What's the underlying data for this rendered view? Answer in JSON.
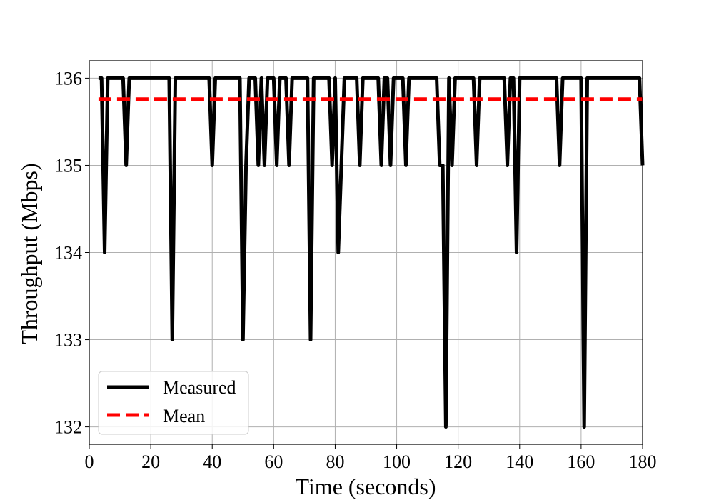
{
  "chart_data": {
    "type": "line",
    "title": "",
    "xlabel": "Time (seconds)",
    "ylabel": "Throughput (Mbps)",
    "xlim": [
      0,
      180
    ],
    "ylim": [
      131.8,
      136.2
    ],
    "xticks": [
      0,
      20,
      40,
      60,
      80,
      100,
      120,
      140,
      160,
      180
    ],
    "yticks": [
      132,
      133,
      134,
      135,
      136
    ],
    "xtick_labels": [
      "0",
      "20",
      "40",
      "60",
      "80",
      "100",
      "120",
      "140",
      "160",
      "180"
    ],
    "ytick_labels": [
      "132",
      "133",
      "134",
      "135",
      "136"
    ],
    "grid": true,
    "legend_position": "lower-left",
    "series": [
      {
        "name": "Measured",
        "color": "#000000",
        "style": "solid",
        "points": [
          [
            3,
            136
          ],
          [
            4,
            136
          ],
          [
            5,
            134
          ],
          [
            6,
            136
          ],
          [
            7,
            136
          ],
          [
            8,
            136
          ],
          [
            9,
            136
          ],
          [
            10,
            136
          ],
          [
            11,
            136
          ],
          [
            12,
            135
          ],
          [
            13,
            136
          ],
          [
            14,
            136
          ],
          [
            15,
            136
          ],
          [
            16,
            136
          ],
          [
            17,
            136
          ],
          [
            18,
            136
          ],
          [
            19,
            136
          ],
          [
            20,
            136
          ],
          [
            21,
            136
          ],
          [
            22,
            136
          ],
          [
            23,
            136
          ],
          [
            24,
            136
          ],
          [
            25,
            136
          ],
          [
            26,
            136
          ],
          [
            27,
            133
          ],
          [
            28,
            136
          ],
          [
            29,
            136
          ],
          [
            30,
            136
          ],
          [
            31,
            136
          ],
          [
            32,
            136
          ],
          [
            33,
            136
          ],
          [
            34,
            136
          ],
          [
            35,
            136
          ],
          [
            36,
            136
          ],
          [
            37,
            136
          ],
          [
            38,
            136
          ],
          [
            39,
            136
          ],
          [
            40,
            135
          ],
          [
            41,
            136
          ],
          [
            42,
            136
          ],
          [
            43,
            136
          ],
          [
            44,
            136
          ],
          [
            45,
            136
          ],
          [
            46,
            136
          ],
          [
            47,
            136
          ],
          [
            48,
            136
          ],
          [
            49,
            136
          ],
          [
            50,
            133
          ],
          [
            51,
            135
          ],
          [
            52,
            136
          ],
          [
            53,
            136
          ],
          [
            54,
            136
          ],
          [
            55,
            135
          ],
          [
            56,
            136
          ],
          [
            57,
            135
          ],
          [
            58,
            136
          ],
          [
            59,
            136
          ],
          [
            60,
            136
          ],
          [
            61,
            135
          ],
          [
            62,
            136
          ],
          [
            63,
            136
          ],
          [
            64,
            136
          ],
          [
            65,
            135
          ],
          [
            66,
            136
          ],
          [
            67,
            136
          ],
          [
            68,
            136
          ],
          [
            69,
            136
          ],
          [
            70,
            136
          ],
          [
            71,
            136
          ],
          [
            72,
            133
          ],
          [
            73,
            136
          ],
          [
            74,
            136
          ],
          [
            75,
            136
          ],
          [
            76,
            136
          ],
          [
            77,
            136
          ],
          [
            78,
            136
          ],
          [
            79,
            135
          ],
          [
            80,
            136
          ],
          [
            81,
            134
          ],
          [
            82,
            135
          ],
          [
            83,
            136
          ],
          [
            84,
            136
          ],
          [
            85,
            136
          ],
          [
            86,
            136
          ],
          [
            87,
            136
          ],
          [
            88,
            135
          ],
          [
            89,
            136
          ],
          [
            90,
            136
          ],
          [
            91,
            136
          ],
          [
            92,
            136
          ],
          [
            93,
            136
          ],
          [
            94,
            136
          ],
          [
            95,
            135
          ],
          [
            96,
            136
          ],
          [
            97,
            136
          ],
          [
            98,
            135
          ],
          [
            99,
            136
          ],
          [
            100,
            136
          ],
          [
            101,
            136
          ],
          [
            102,
            136
          ],
          [
            103,
            135
          ],
          [
            104,
            136
          ],
          [
            105,
            136
          ],
          [
            106,
            136
          ],
          [
            107,
            136
          ],
          [
            108,
            136
          ],
          [
            109,
            136
          ],
          [
            110,
            136
          ],
          [
            111,
            136
          ],
          [
            112,
            136
          ],
          [
            113,
            136
          ],
          [
            114,
            135
          ],
          [
            115,
            135
          ],
          [
            116,
            132
          ],
          [
            117,
            136
          ],
          [
            118,
            135
          ],
          [
            119,
            136
          ],
          [
            120,
            136
          ],
          [
            121,
            136
          ],
          [
            122,
            136
          ],
          [
            123,
            136
          ],
          [
            124,
            136
          ],
          [
            125,
            136
          ],
          [
            126,
            135
          ],
          [
            127,
            136
          ],
          [
            128,
            136
          ],
          [
            129,
            136
          ],
          [
            130,
            136
          ],
          [
            131,
            136
          ],
          [
            132,
            136
          ],
          [
            133,
            136
          ],
          [
            134,
            136
          ],
          [
            135,
            136
          ],
          [
            136,
            135
          ],
          [
            137,
            136
          ],
          [
            138,
            136
          ],
          [
            139,
            134
          ],
          [
            140,
            136
          ],
          [
            141,
            136
          ],
          [
            142,
            136
          ],
          [
            143,
            136
          ],
          [
            144,
            136
          ],
          [
            145,
            136
          ],
          [
            146,
            136
          ],
          [
            147,
            136
          ],
          [
            148,
            136
          ],
          [
            149,
            136
          ],
          [
            150,
            136
          ],
          [
            151,
            136
          ],
          [
            152,
            136
          ],
          [
            153,
            135
          ],
          [
            154,
            136
          ],
          [
            155,
            136
          ],
          [
            156,
            136
          ],
          [
            157,
            136
          ],
          [
            158,
            136
          ],
          [
            159,
            136
          ],
          [
            160,
            136
          ],
          [
            161,
            132
          ],
          [
            162,
            136
          ],
          [
            163,
            136
          ],
          [
            164,
            136
          ],
          [
            165,
            136
          ],
          [
            166,
            136
          ],
          [
            167,
            136
          ],
          [
            168,
            136
          ],
          [
            169,
            136
          ],
          [
            170,
            136
          ],
          [
            171,
            136
          ],
          [
            172,
            136
          ],
          [
            173,
            136
          ],
          [
            174,
            136
          ],
          [
            175,
            136
          ],
          [
            176,
            136
          ],
          [
            177,
            136
          ],
          [
            178,
            136
          ],
          [
            179,
            136
          ],
          [
            180,
            135
          ]
        ]
      },
      {
        "name": "Mean",
        "color": "#ff0000",
        "style": "dashed",
        "points": [
          [
            3,
            135.76
          ],
          [
            180,
            135.76
          ]
        ]
      }
    ]
  }
}
